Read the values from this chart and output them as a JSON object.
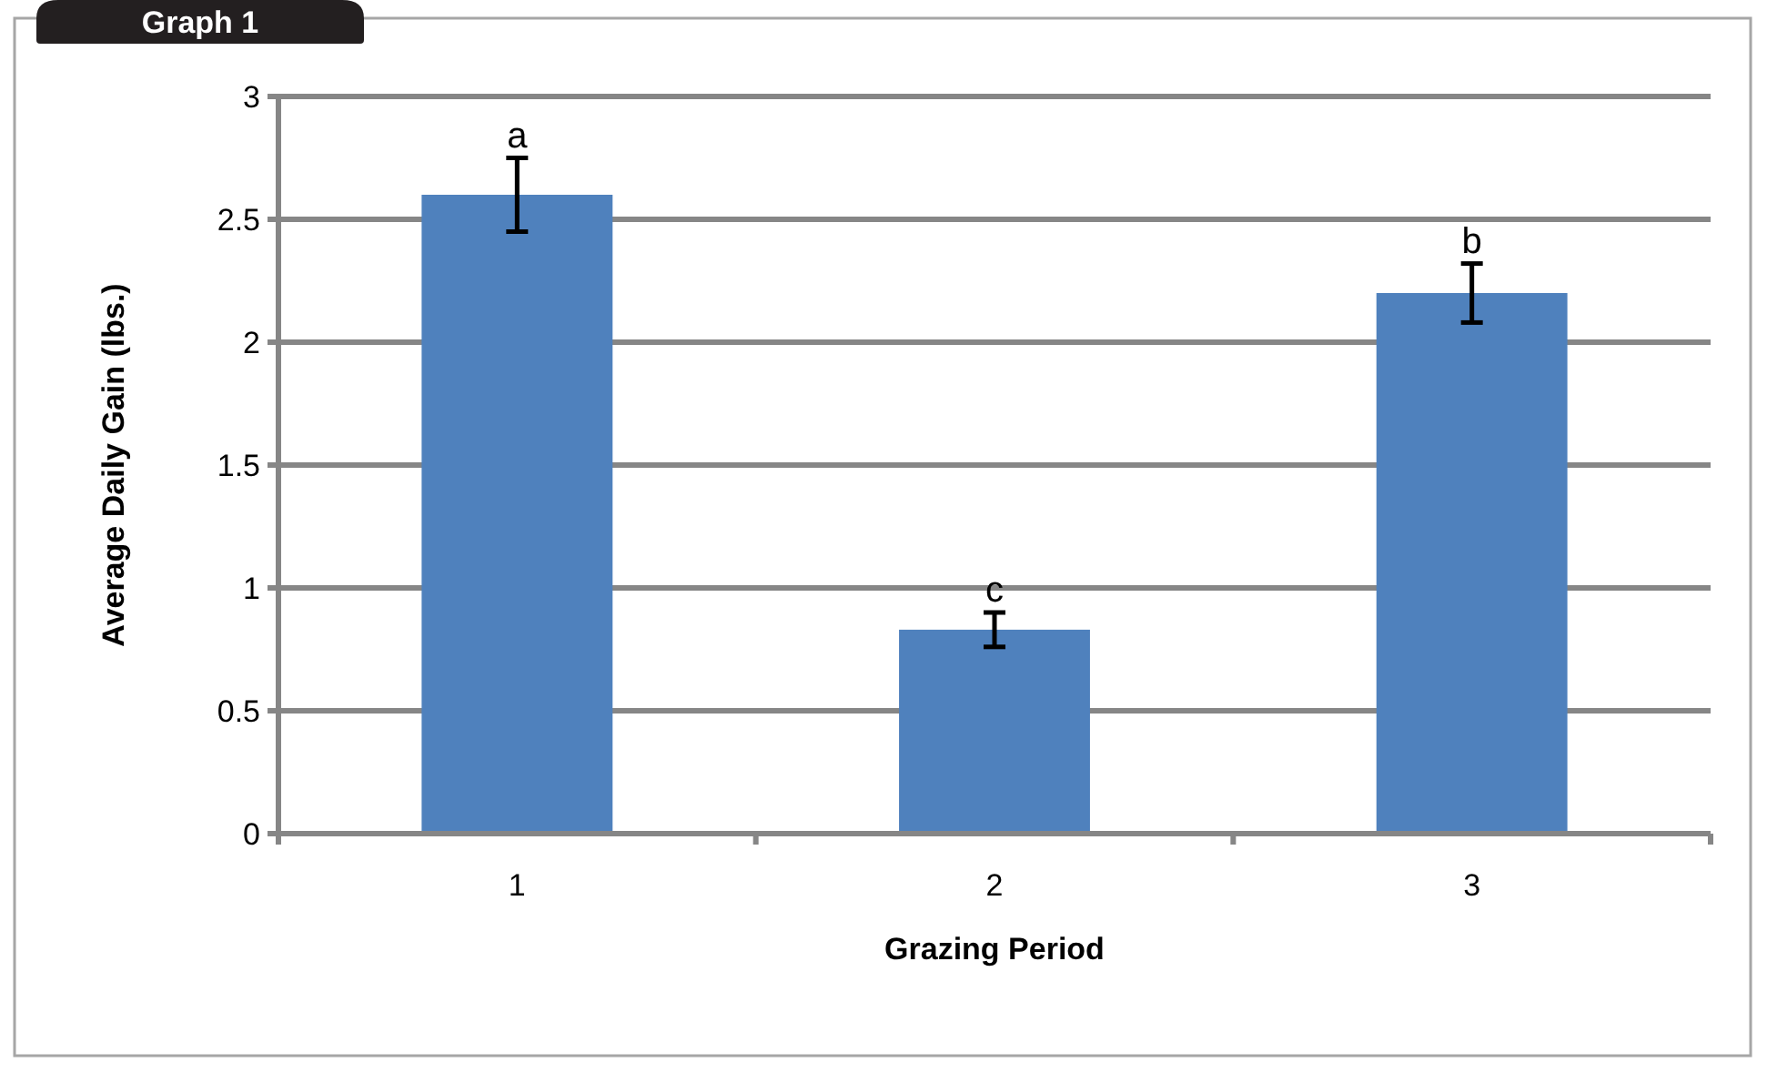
{
  "chart_data": {
    "type": "bar",
    "title": "Graph 1",
    "xlabel": "Grazing Period",
    "ylabel": "Average Daily Gain (lbs.)",
    "categories": [
      "1",
      "2",
      "3"
    ],
    "values": [
      2.6,
      0.83,
      2.2
    ],
    "errors": [
      0.15,
      0.07,
      0.12
    ],
    "color": "#4f81bd",
    "ylim": [
      0,
      3
    ],
    "yticks": [
      0,
      0.5,
      1,
      1.5,
      2,
      2.5,
      3
    ],
    "grid": "y",
    "annotations": [
      {
        "text": "a",
        "x": "1",
        "y": 2.75
      },
      {
        "text": "c",
        "x": "2",
        "y": 0.9
      },
      {
        "text": "b",
        "x": "3",
        "y": 2.32
      }
    ]
  }
}
